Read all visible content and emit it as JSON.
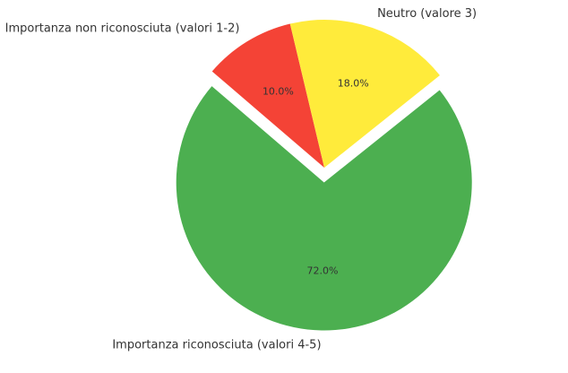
{
  "chart_data": {
    "type": "pie",
    "categories": [
      "Importanza non riconosciuta (valori 1-2)",
      "Neutro (valore 3)",
      "Importanza riconosciuta (valori 4-5)"
    ],
    "values": [
      10,
      18,
      72
    ],
    "value_labels": [
      "10.0%",
      "18.0%",
      "72.0%"
    ],
    "colors": [
      "#f44336",
      "#ffeb3b",
      "#4caf50"
    ],
    "explode": [
      0,
      0,
      0.1
    ]
  }
}
